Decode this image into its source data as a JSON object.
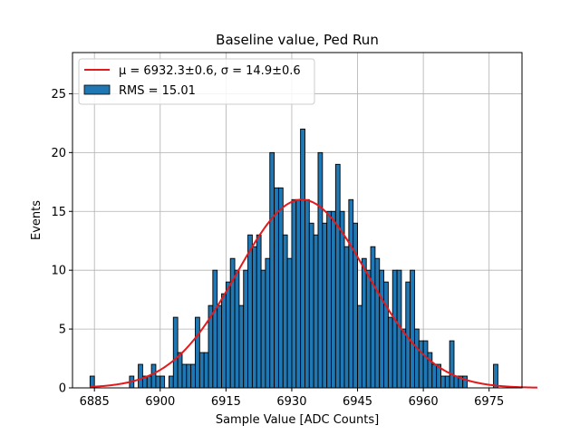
{
  "chart_data": {
    "type": "bar",
    "title": "Baseline value, Ped Run",
    "xlabel": "Sample Value [ADC Counts]",
    "ylabel": "Events",
    "xlim": [
      6880,
      6982.5
    ],
    "ylim": [
      0,
      28.5
    ],
    "xticks": [
      6885,
      6900,
      6915,
      6930,
      6945,
      6960,
      6975
    ],
    "yticks": [
      0,
      5,
      10,
      15,
      20,
      25
    ],
    "grid": true,
    "bin_start": 6884,
    "bin_width": 1,
    "counts": [
      1,
      0,
      0,
      0,
      0,
      0,
      0,
      0,
      0,
      1,
      0,
      2,
      1,
      1,
      2,
      1,
      1,
      0,
      1,
      6,
      3,
      2,
      2,
      2,
      6,
      3,
      3,
      7,
      10,
      7,
      8,
      9,
      11,
      10,
      7,
      10,
      13,
      12,
      13,
      10,
      11,
      20,
      17,
      17,
      13,
      11,
      16,
      16,
      22,
      16,
      14,
      13,
      20,
      14,
      15,
      15,
      19,
      15,
      12,
      16,
      14,
      7,
      11,
      10,
      12,
      11,
      10,
      9,
      6,
      10,
      10,
      5,
      9,
      10,
      5,
      4,
      4,
      3,
      2,
      2,
      1,
      1,
      4,
      1,
      1,
      1,
      0,
      0,
      0,
      0,
      0,
      0,
      2,
      0,
      0,
      0,
      0,
      0,
      0,
      0,
      0,
      0
    ],
    "series": [
      {
        "name": "RMS = 15.01",
        "kind": "histogram",
        "color": "#1f77b4"
      },
      {
        "name": "fit",
        "kind": "gaussian",
        "color": "#e31a1c",
        "mu": 6932.3,
        "sigma": 14.9,
        "amplitude": 16
      }
    ],
    "legend": {
      "placement": "top-left",
      "fit_label": "μ = 6932.3±0.6, σ = 14.9±0.6",
      "hist_label": "RMS = 15.01"
    }
  }
}
